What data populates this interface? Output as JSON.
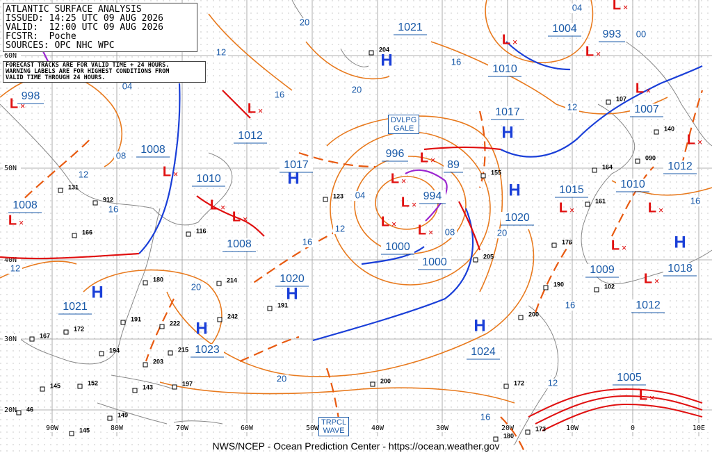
{
  "header": {
    "lines": [
      "ATLANTIC SURFACE ANALYSIS",
      "ISSUED: 14:25 UTC 09 AUG 2026",
      "VALID:  12:00 UTC 09 AUG 2026",
      "FCSTR:  Poche",
      "SOURCES: OPC NHC WPC"
    ],
    "note": [
      "FORECAST TRACKS ARE FOR VALID TIME + 24 HOURS.",
      "WARNING LABELS ARE FOR HIGHEST CONDITIONS FROM",
      "VALID TIME THROUGH 24 HOURS."
    ]
  },
  "boxes": [
    {
      "lines": [
        "DVLPG",
        "GALE"
      ]
    },
    {
      "lines": [
        "TRPCL",
        "WAVE"
      ]
    }
  ],
  "latitudes": [
    "60N",
    "50N",
    "40N",
    "30N",
    "20N"
  ],
  "longitudes": [
    "90W",
    "80W",
    "70W",
    "60W",
    "50W",
    "40W",
    "30W",
    "20W",
    "10W",
    "0",
    "10E"
  ],
  "centers": [
    {
      "symbol": "L",
      "pressure": "998"
    },
    {
      "symbol": "H",
      "pressure": "1021"
    },
    {
      "symbol": "L",
      "pressure": "1004"
    },
    {
      "symbol": "L",
      "pressure": "993"
    },
    {
      "symbol": "L",
      "pressure": "1010"
    },
    {
      "symbol": "H",
      "pressure": "1017"
    },
    {
      "symbol": "L",
      "pressure": "1007"
    },
    {
      "symbol": "L",
      "pressure": "1012"
    },
    {
      "symbol": "L",
      "pressure": "1008"
    },
    {
      "symbol": "L",
      "pressure": "996"
    },
    {
      "symbol": "L",
      "pressure": "89"
    },
    {
      "symbol": "L",
      "pressure": "994"
    },
    {
      "symbol": "L",
      "pressure": "1010"
    },
    {
      "symbol": "H",
      "pressure": "1017"
    },
    {
      "symbol": "L",
      "pressure": "1008"
    },
    {
      "symbol": "L",
      "pressure": "1008"
    },
    {
      "symbol": "H",
      "pressure": "1020"
    },
    {
      "symbol": "L",
      "pressure": "1000"
    },
    {
      "symbol": "L",
      "pressure": "1000"
    },
    {
      "symbol": "L",
      "pressure": "1015"
    },
    {
      "symbol": "L",
      "pressure": "1010"
    },
    {
      "symbol": "L",
      "pressure": "1012"
    },
    {
      "symbol": "H",
      "pressure": "1018"
    },
    {
      "symbol": "L",
      "pressure": "1009"
    },
    {
      "symbol": "L",
      "pressure": "1012"
    },
    {
      "symbol": "H",
      "pressure": "1020"
    },
    {
      "symbol": "H",
      "pressure": "1021"
    },
    {
      "symbol": "H",
      "pressure": "1023"
    },
    {
      "symbol": "H",
      "pressure": "1024"
    },
    {
      "symbol": "L",
      "pressure": "1005"
    }
  ],
  "isobar_labels": [
    "20",
    "12",
    "04",
    "16",
    "16",
    "20",
    "12",
    "00",
    "04",
    "08",
    "12",
    "16",
    "04",
    "12",
    "08",
    "16",
    "20",
    "20",
    "20",
    "16",
    "12",
    "16",
    "16",
    "12"
  ],
  "stations": [
    "204",
    "155",
    "123",
    "131",
    "912",
    "166",
    "116",
    "180",
    "214",
    "191",
    "242",
    "222",
    "191",
    "172",
    "167",
    "194",
    "215",
    "203",
    "197",
    "143",
    "152",
    "145",
    "46",
    "149",
    "145",
    "200",
    "205",
    "200",
    "190",
    "176",
    "161",
    "164",
    "140",
    "090",
    "102",
    "172",
    "180",
    "173",
    "107"
  ],
  "footer": "NWS/NCEP - Ocean Prediction Center - https://ocean.weather.gov"
}
